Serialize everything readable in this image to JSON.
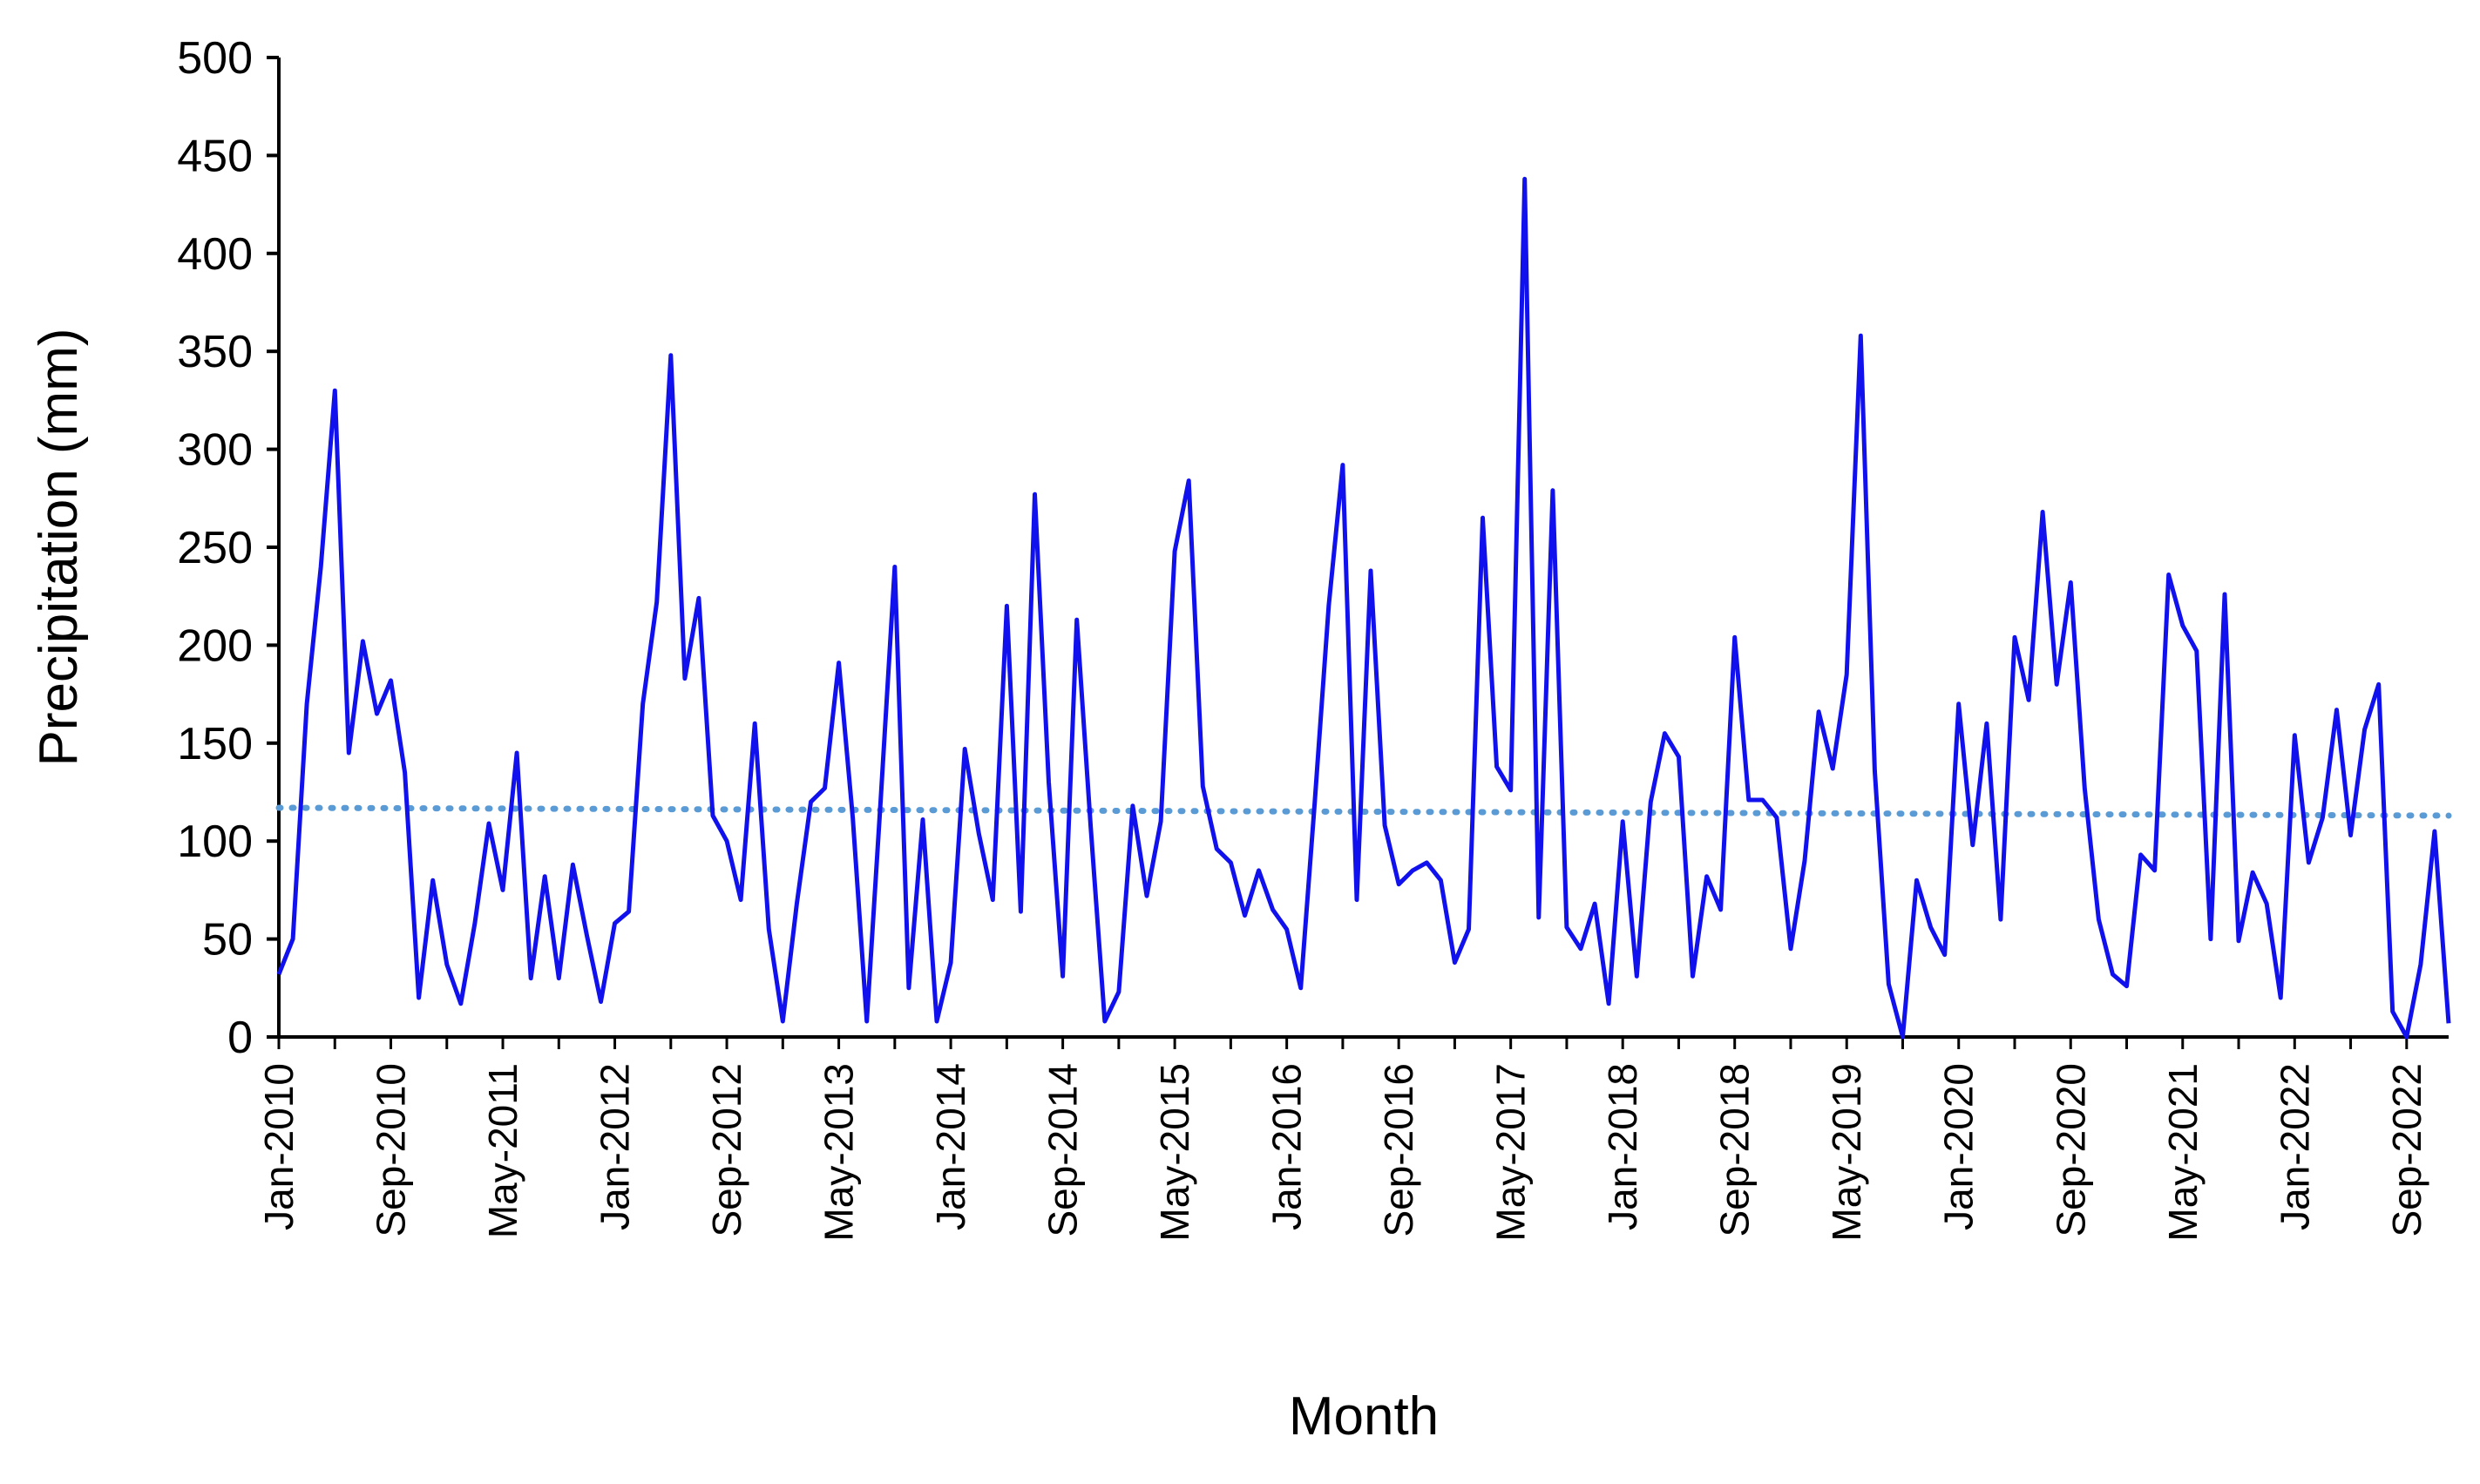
{
  "chart_data": {
    "type": "line",
    "title": "",
    "xlabel": "Month",
    "ylabel": "Precipitation (mm)",
    "ylim": [
      0,
      500
    ],
    "y_ticks": [
      0,
      50,
      100,
      150,
      200,
      250,
      300,
      350,
      400,
      450,
      500
    ],
    "x_start": "Jan-2010",
    "x_end": "Dec-2022",
    "x_tick_labels": [
      "Jan-2010",
      "Sep-2010",
      "May-2011",
      "Jan-2012",
      "Sep-2012",
      "May-2013",
      "Jan-2014",
      "Sep-2014",
      "May-2015",
      "Jan-2016",
      "Sep-2016",
      "May-2017",
      "Jan-2018",
      "Sep-2018",
      "May-2019",
      "Jan-2020",
      "Sep-2020",
      "May-2021",
      "Jan-2022",
      "Sep-2022"
    ],
    "grid": false,
    "legend": "none",
    "series": [
      {
        "style": "solid line",
        "color": "#1111ee",
        "values": [
          32,
          50,
          170,
          240,
          330,
          145,
          202,
          165,
          182,
          135,
          20,
          80,
          37,
          17,
          58,
          109,
          75,
          145,
          30,
          82,
          30,
          88,
          52,
          18,
          58,
          64,
          170,
          222,
          348,
          183,
          224,
          113,
          100,
          70,
          160,
          55,
          8,
          68,
          120,
          127,
          191,
          112,
          8,
          122,
          240,
          25,
          111,
          8,
          38,
          147,
          104,
          70,
          220,
          64,
          277,
          130,
          31,
          213,
          107,
          8,
          23,
          118,
          72,
          110,
          248,
          284,
          128,
          96,
          89,
          62,
          85,
          65,
          55,
          25,
          120,
          220,
          292,
          70,
          238,
          108,
          78,
          85,
          89,
          80,
          38,
          55,
          265,
          138,
          126,
          438,
          61,
          279,
          56,
          45,
          68,
          17,
          110,
          31,
          120,
          155,
          143,
          31,
          82,
          65,
          204,
          121,
          121,
          112,
          45,
          90,
          166,
          137,
          185,
          358,
          136,
          27,
          0,
          80,
          56,
          42,
          170,
          98,
          160,
          60,
          204,
          172,
          268,
          180,
          232,
          127,
          60,
          32,
          26,
          93,
          85,
          236,
          210,
          197,
          50,
          226,
          49,
          84,
          68,
          20,
          154,
          89,
          112,
          167,
          103,
          157,
          180,
          13,
          0,
          37,
          105,
          7
        ]
      },
      {
        "style": "dotted trendline",
        "color": "#5b9bd5",
        "endpoints": [
          117,
          113
        ]
      }
    ]
  }
}
